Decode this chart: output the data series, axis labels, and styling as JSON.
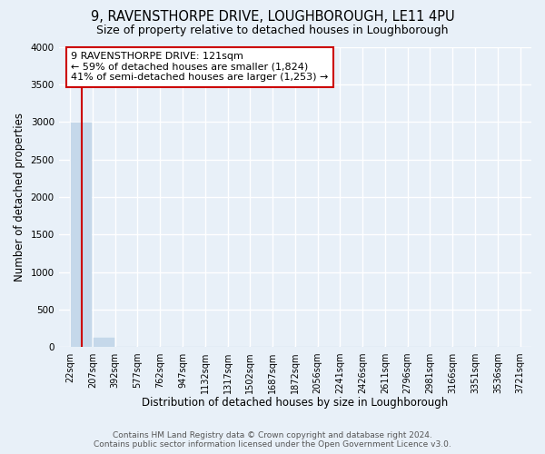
{
  "title": "9, RAVENSTHORPE DRIVE, LOUGHBOROUGH, LE11 4PU",
  "subtitle": "Size of property relative to detached houses in Loughborough",
  "xlabel": "Distribution of detached houses by size in Loughborough",
  "ylabel": "Number of detached properties",
  "footer_line1": "Contains HM Land Registry data © Crown copyright and database right 2024.",
  "footer_line2": "Contains public sector information licensed under the Open Government Licence v3.0.",
  "bar_edges": [
    22,
    207,
    392,
    577,
    762,
    947,
    1132,
    1317,
    1502,
    1687,
    1872,
    2056,
    2241,
    2426,
    2611,
    2796,
    2981,
    3166,
    3351,
    3536,
    3721
  ],
  "bar_heights": [
    2990,
    130,
    8,
    4,
    3,
    2,
    2,
    2,
    1,
    1,
    1,
    1,
    1,
    1,
    0,
    0,
    0,
    0,
    0,
    0
  ],
  "bar_color": "#c5d8ea",
  "bar_edge_color": "#c5d8ea",
  "bg_color": "#e8f0f8",
  "grid_color": "#ffffff",
  "property_sqm": 121,
  "annotation_title": "9 RAVENSTHORPE DRIVE: 121sqm",
  "annotation_line1": "← 59% of detached houses are smaller (1,824)",
  "annotation_line2": "41% of semi-detached houses are larger (1,253) →",
  "annotation_box_facecolor": "#ffffff",
  "annotation_border_color": "#cc0000",
  "vline_color": "#cc0000",
  "ylim": [
    0,
    4000
  ],
  "yticks": [
    0,
    500,
    1000,
    1500,
    2000,
    2500,
    3000,
    3500,
    4000
  ],
  "title_fontsize": 10.5,
  "subtitle_fontsize": 9,
  "tick_label_fontsize": 7,
  "ylabel_fontsize": 8.5,
  "xlabel_fontsize": 8.5,
  "footer_fontsize": 6.5
}
